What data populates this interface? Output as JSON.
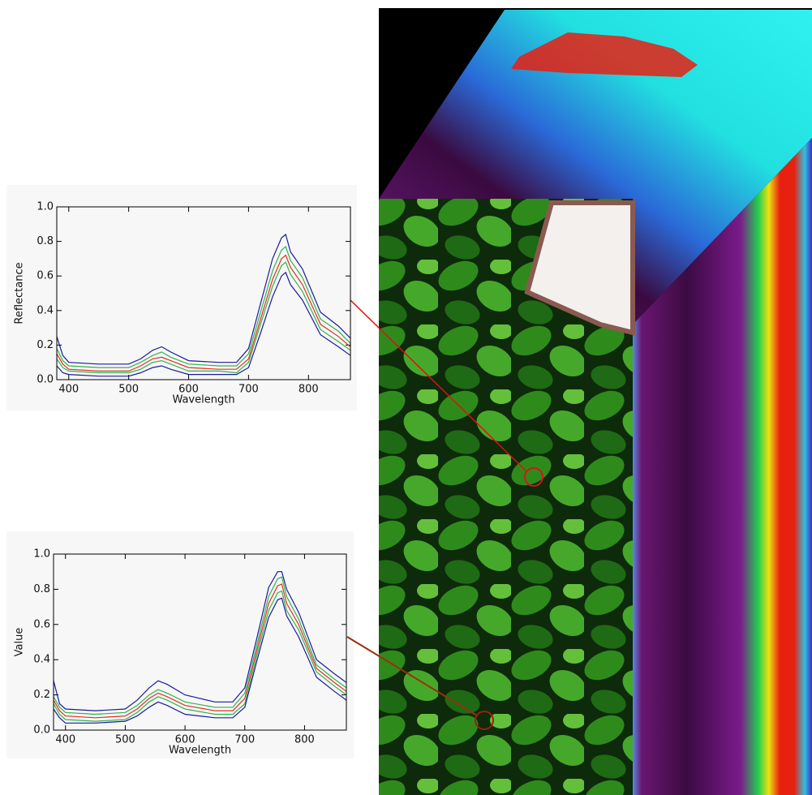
{
  "chart_data": [
    {
      "type": "line",
      "xlabel": "Wavelength",
      "ylabel": "Reflectance",
      "x": [
        380,
        390,
        400,
        450,
        500,
        520,
        540,
        555,
        570,
        600,
        650,
        680,
        700,
        720,
        740,
        755,
        762,
        770,
        790,
        820,
        850,
        870
      ],
      "series": [
        {
          "color": "#1a1aa0",
          "values": [
            0.25,
            0.14,
            0.1,
            0.09,
            0.09,
            0.12,
            0.17,
            0.19,
            0.16,
            0.11,
            0.1,
            0.1,
            0.18,
            0.44,
            0.7,
            0.82,
            0.84,
            0.74,
            0.64,
            0.39,
            0.31,
            0.24
          ]
        },
        {
          "color": "#2fb34a",
          "values": [
            0.18,
            0.11,
            0.08,
            0.07,
            0.07,
            0.1,
            0.14,
            0.16,
            0.13,
            0.09,
            0.08,
            0.08,
            0.15,
            0.39,
            0.63,
            0.75,
            0.77,
            0.69,
            0.59,
            0.35,
            0.28,
            0.21
          ]
        },
        {
          "color": "#e0301e",
          "values": [
            0.15,
            0.09,
            0.06,
            0.05,
            0.05,
            0.08,
            0.12,
            0.13,
            0.11,
            0.07,
            0.06,
            0.06,
            0.12,
            0.35,
            0.58,
            0.7,
            0.72,
            0.65,
            0.55,
            0.32,
            0.25,
            0.19
          ]
        },
        {
          "color": "#2fb34a",
          "values": [
            0.12,
            0.07,
            0.05,
            0.04,
            0.04,
            0.06,
            0.1,
            0.11,
            0.09,
            0.05,
            0.05,
            0.04,
            0.1,
            0.32,
            0.54,
            0.66,
            0.68,
            0.61,
            0.51,
            0.29,
            0.22,
            0.17
          ]
        },
        {
          "color": "#1a1aa0",
          "values": [
            0.08,
            0.04,
            0.03,
            0.02,
            0.02,
            0.04,
            0.07,
            0.08,
            0.06,
            0.03,
            0.03,
            0.03,
            0.07,
            0.27,
            0.48,
            0.6,
            0.62,
            0.55,
            0.46,
            0.26,
            0.19,
            0.14
          ]
        }
      ],
      "xlim": [
        380,
        870
      ],
      "xticks": [
        400,
        500,
        600,
        700,
        800
      ],
      "ylim": [
        0,
        1
      ],
      "yticks": [
        {
          "value": 0,
          "label": "0.0"
        },
        0.2,
        0.4,
        0.6,
        0.8,
        {
          "value": 1,
          "label": "1.0"
        }
      ]
    },
    {
      "type": "line",
      "xlabel": "Wavelength",
      "ylabel": "Value",
      "x": [
        380,
        390,
        400,
        450,
        500,
        520,
        540,
        555,
        570,
        600,
        650,
        680,
        700,
        720,
        740,
        755,
        762,
        770,
        790,
        820,
        850,
        870
      ],
      "series": [
        {
          "color": "#1a1aa0",
          "values": [
            0.28,
            0.15,
            0.12,
            0.11,
            0.12,
            0.17,
            0.24,
            0.28,
            0.26,
            0.2,
            0.16,
            0.16,
            0.24,
            0.52,
            0.81,
            0.9,
            0.9,
            0.8,
            0.67,
            0.4,
            0.32,
            0.27
          ]
        },
        {
          "color": "#2fb34a",
          "values": [
            0.19,
            0.13,
            0.1,
            0.09,
            0.1,
            0.14,
            0.2,
            0.23,
            0.21,
            0.16,
            0.13,
            0.13,
            0.21,
            0.48,
            0.76,
            0.86,
            0.87,
            0.76,
            0.63,
            0.37,
            0.29,
            0.24
          ]
        },
        {
          "color": "#e0301e",
          "values": [
            0.17,
            0.11,
            0.08,
            0.07,
            0.08,
            0.12,
            0.18,
            0.21,
            0.19,
            0.14,
            0.11,
            0.11,
            0.18,
            0.45,
            0.72,
            0.82,
            0.83,
            0.72,
            0.6,
            0.35,
            0.27,
            0.22
          ]
        },
        {
          "color": "#2fb34a",
          "values": [
            0.15,
            0.09,
            0.06,
            0.05,
            0.06,
            0.1,
            0.16,
            0.19,
            0.17,
            0.12,
            0.09,
            0.09,
            0.15,
            0.42,
            0.68,
            0.78,
            0.79,
            0.68,
            0.57,
            0.33,
            0.25,
            0.2
          ]
        },
        {
          "color": "#1a1aa0",
          "values": [
            0.12,
            0.07,
            0.04,
            0.04,
            0.05,
            0.08,
            0.13,
            0.16,
            0.14,
            0.09,
            0.07,
            0.07,
            0.13,
            0.39,
            0.64,
            0.74,
            0.75,
            0.65,
            0.53,
            0.3,
            0.22,
            0.17
          ]
        }
      ],
      "xlim": [
        380,
        870
      ],
      "xticks": [
        400,
        500,
        600,
        700,
        800
      ],
      "ylim": [
        0,
        1
      ],
      "yticks": [
        {
          "value": 0,
          "label": "0.0"
        },
        0.2,
        0.4,
        0.6,
        0.8,
        {
          "value": 1,
          "label": "1.0"
        }
      ]
    }
  ]
}
